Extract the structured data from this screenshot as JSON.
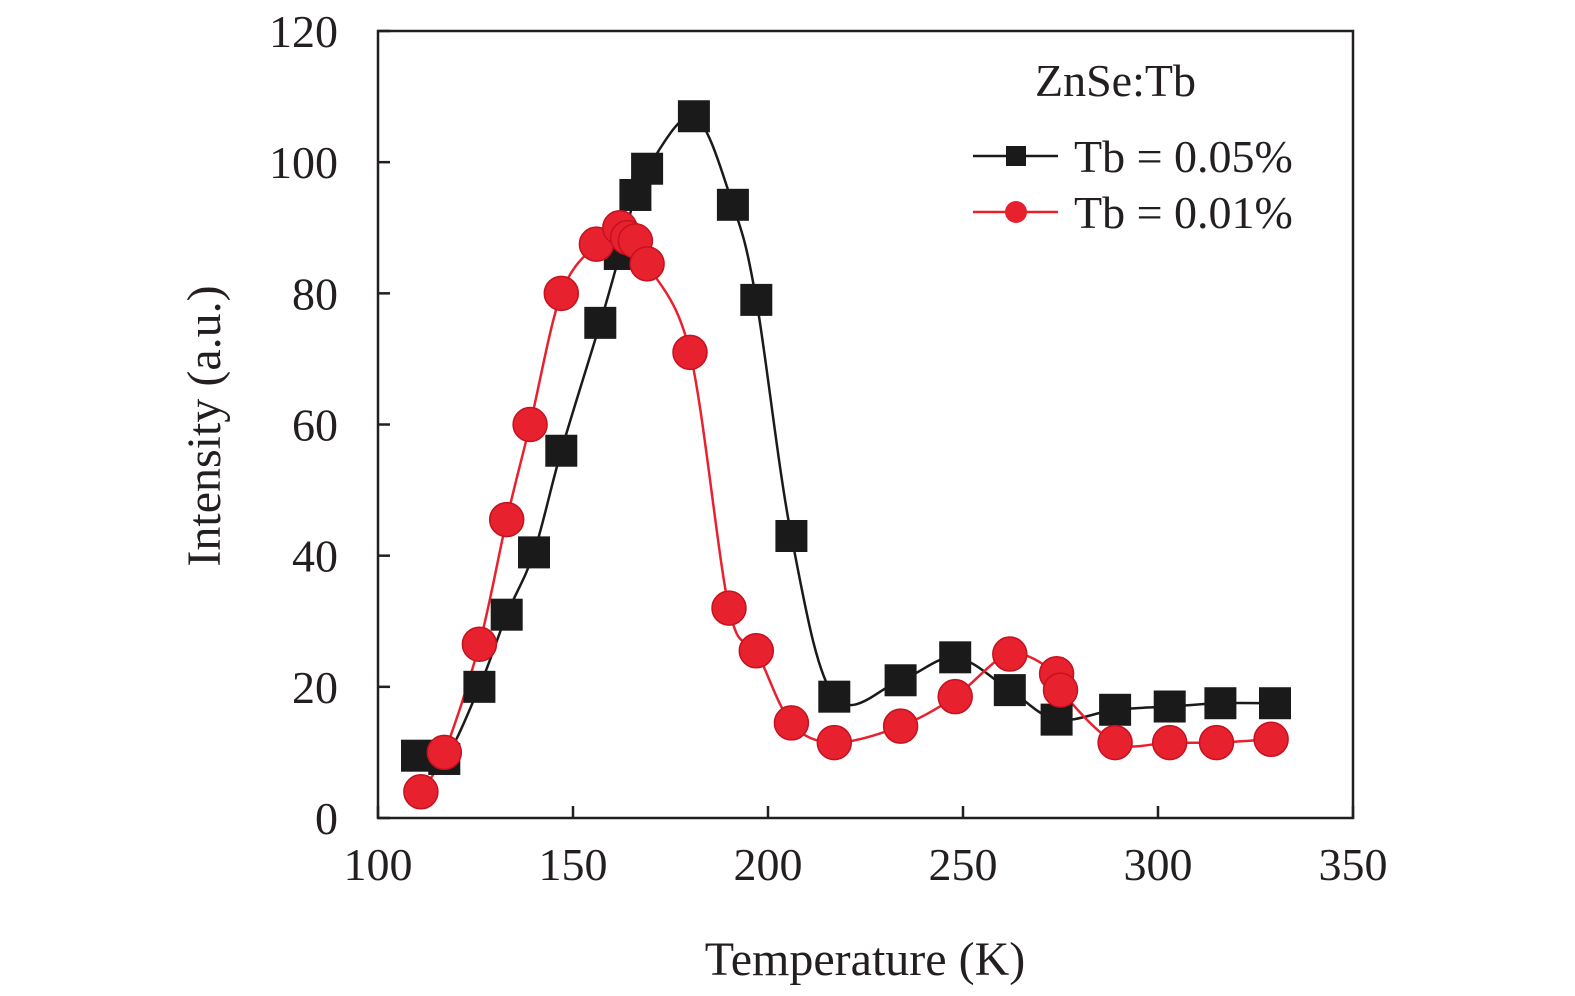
{
  "chart_data": {
    "type": "scatter",
    "xlabel": "Temperature (K)",
    "ylabel": "Intensity (a.u.)",
    "xlim": [
      100,
      350
    ],
    "ylim": [
      0,
      120
    ],
    "x_ticks": [
      100,
      150,
      200,
      250,
      300,
      350
    ],
    "y_ticks": [
      0,
      20,
      40,
      60,
      80,
      100,
      120
    ],
    "legend_title": "ZnSe:Tb",
    "legend_position": "top-right",
    "grid": false,
    "series": [
      {
        "name": "Tb = 0.05%",
        "marker": "square",
        "color": "#1a1a1a",
        "x": [
          110,
          117,
          126,
          133,
          140,
          147,
          157,
          162,
          166,
          169,
          181,
          191,
          197,
          206,
          217,
          234,
          248,
          262,
          274,
          289,
          303,
          316,
          330
        ],
        "y": [
          9.5,
          9,
          20,
          31,
          40.5,
          56,
          75.5,
          86,
          95,
          99,
          107,
          93.5,
          79,
          43,
          18.5,
          21,
          24.5,
          19.5,
          15,
          16.5,
          17,
          17.5,
          17.5
        ]
      },
      {
        "name": "Tb = 0.01%",
        "marker": "circle",
        "color": "#e8212e",
        "x": [
          111,
          117,
          126,
          133,
          139,
          147,
          156,
          162,
          164,
          166,
          169,
          180,
          190,
          197,
          206,
          217,
          234,
          248,
          262,
          274,
          275,
          289,
          303,
          315,
          329
        ],
        "y": [
          4,
          10,
          26.5,
          45.5,
          60,
          80,
          87.5,
          90,
          88.5,
          88,
          84.5,
          71,
          32,
          25.5,
          14.5,
          11.5,
          14,
          18.5,
          25,
          22,
          19.5,
          11.5,
          11.5,
          11.5,
          12
        ]
      }
    ]
  }
}
